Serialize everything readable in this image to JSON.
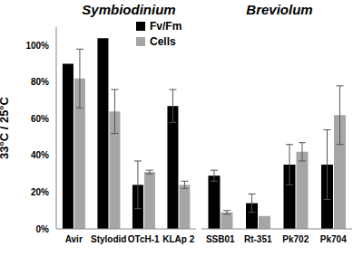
{
  "chart_data": [
    {
      "type": "bar",
      "title": "Symbiodinium",
      "y_label": "33°C / 25°C",
      "categories": [
        "Avir",
        "Stylodid",
        "OTcH-1",
        "KLAp 2"
      ],
      "series": [
        {
          "name": "Fv/Fm",
          "color": "#000000",
          "values": [
            90,
            104,
            24,
            67
          ],
          "errors": [
            null,
            null,
            13,
            9
          ]
        },
        {
          "name": "Cells",
          "color": "#a6a6a6",
          "values": [
            82,
            64,
            31,
            24
          ],
          "errors": [
            16,
            12,
            1,
            2
          ]
        }
      ],
      "ylim": [
        0,
        110
      ],
      "yticks": [
        {
          "value": 0,
          "label": "0%"
        },
        {
          "value": 20,
          "label": "20%"
        },
        {
          "value": 40,
          "label": "40%"
        },
        {
          "value": 60,
          "label": "60%"
        },
        {
          "value": 80,
          "label": "80%"
        },
        {
          "value": 100,
          "label": "100%"
        }
      ],
      "legend": "top"
    },
    {
      "type": "bar",
      "title": "Breviolum",
      "categories": [
        "SSB01",
        "Rt-351",
        "Pk702",
        "Pk704"
      ],
      "series": [
        {
          "name": "Fv/Fm",
          "color": "#000000",
          "values": [
            29,
            14,
            35,
            35
          ],
          "errors": [
            3,
            5,
            11,
            19
          ]
        },
        {
          "name": "Cells",
          "color": "#a6a6a6",
          "values": [
            9,
            7,
            42,
            62
          ],
          "errors": [
            1,
            null,
            5,
            16
          ]
        }
      ],
      "ylim": [
        0,
        110
      ],
      "yticks": [
        {
          "value": 0,
          "label": "0%"
        },
        {
          "value": 20,
          "label": "20%"
        },
        {
          "value": 40,
          "label": "40%"
        },
        {
          "value": 60,
          "label": "60%"
        },
        {
          "value": 80,
          "label": "80%"
        },
        {
          "value": 100,
          "label": "100%"
        }
      ],
      "tick_labels": "x"
    }
  ]
}
